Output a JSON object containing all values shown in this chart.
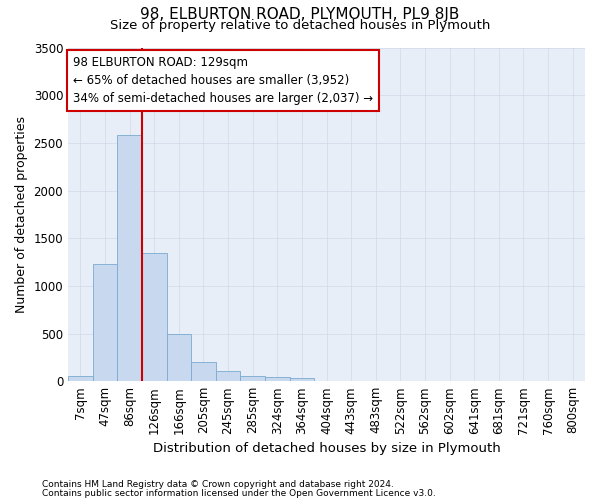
{
  "title": "98, ELBURTON ROAD, PLYMOUTH, PL9 8JB",
  "subtitle": "Size of property relative to detached houses in Plymouth",
  "xlabel": "Distribution of detached houses by size in Plymouth",
  "ylabel": "Number of detached properties",
  "footer1": "Contains HM Land Registry data © Crown copyright and database right 2024.",
  "footer2": "Contains public sector information licensed under the Open Government Licence v3.0.",
  "bin_labels": [
    "7sqm",
    "47sqm",
    "86sqm",
    "126sqm",
    "166sqm",
    "205sqm",
    "245sqm",
    "285sqm",
    "324sqm",
    "364sqm",
    "404sqm",
    "443sqm",
    "483sqm",
    "522sqm",
    "562sqm",
    "602sqm",
    "641sqm",
    "681sqm",
    "721sqm",
    "760sqm",
    "800sqm"
  ],
  "bar_values": [
    50,
    1230,
    2580,
    1340,
    500,
    200,
    110,
    55,
    45,
    30,
    0,
    0,
    0,
    0,
    0,
    0,
    0,
    0,
    0,
    0,
    0
  ],
  "bar_color": "#c8d9ef",
  "bar_edge_color": "#7aaad0",
  "annotation_text": "98 ELBURTON ROAD: 129sqm\n← 65% of detached houses are smaller (3,952)\n34% of semi-detached houses are larger (2,037) →",
  "annotation_box_color": "#ffffff",
  "annotation_box_edge": "#cc0000",
  "ylim": [
    0,
    3500
  ],
  "grid_color": "#d0d8e8",
  "bg_color": "#e8eef8",
  "title_fontsize": 11,
  "subtitle_fontsize": 9.5,
  "red_line_index": 2.5
}
